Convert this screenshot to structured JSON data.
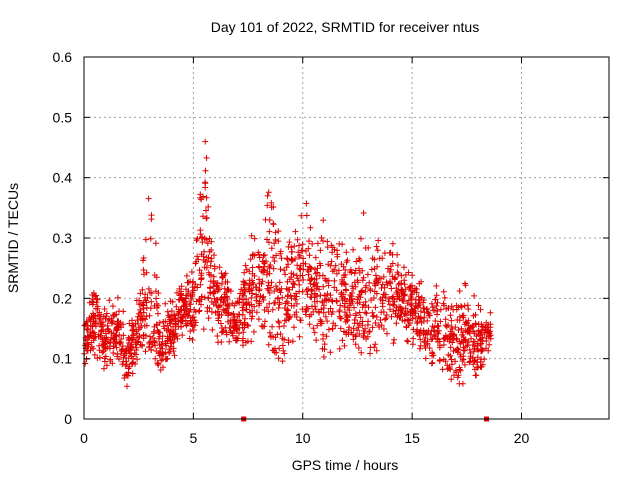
{
  "chart_data": {
    "type": "scatter",
    "title": "Day 101 of 2022, SRMTID for receiver ntus",
    "xlabel": "GPS time / hours",
    "ylabel": "SRMTID / TECUs",
    "xlim": [
      0,
      24
    ],
    "ylim": [
      0,
      0.6
    ],
    "xticks": [
      0,
      5,
      10,
      15,
      20
    ],
    "yticks": [
      0,
      0.1,
      0.2,
      0.3,
      0.4,
      0.5,
      0.6
    ],
    "xtick_labels": [
      "0",
      "5",
      "10",
      "15",
      "20"
    ],
    "ytick_labels": [
      "0",
      "0.1",
      "0.2",
      "0.3",
      "0.4",
      "0.5",
      "0.6"
    ],
    "grid": true,
    "marker": "+",
    "color": "#e00000",
    "data_span_hours": [
      0,
      18.6
    ],
    "value_range": [
      0.02,
      0.52
    ],
    "gap_markers_x": [
      7.3,
      18.4
    ],
    "envelope": [
      {
        "t": 0.0,
        "lo": 0.08,
        "mid": 0.13,
        "hi": 0.17
      },
      {
        "t": 0.5,
        "lo": 0.1,
        "mid": 0.16,
        "hi": 0.22
      },
      {
        "t": 1.0,
        "lo": 0.08,
        "mid": 0.13,
        "hi": 0.19
      },
      {
        "t": 1.5,
        "lo": 0.1,
        "mid": 0.15,
        "hi": 0.22
      },
      {
        "t": 2.0,
        "lo": 0.05,
        "mid": 0.1,
        "hi": 0.15
      },
      {
        "t": 2.5,
        "lo": 0.1,
        "mid": 0.16,
        "hi": 0.22
      },
      {
        "t": 3.0,
        "lo": 0.12,
        "mid": 0.2,
        "hi": 0.43
      },
      {
        "t": 3.5,
        "lo": 0.08,
        "mid": 0.12,
        "hi": 0.2
      },
      {
        "t": 4.0,
        "lo": 0.09,
        "mid": 0.14,
        "hi": 0.2
      },
      {
        "t": 4.5,
        "lo": 0.14,
        "mid": 0.18,
        "hi": 0.23
      },
      {
        "t": 5.0,
        "lo": 0.13,
        "mid": 0.19,
        "hi": 0.25
      },
      {
        "t": 5.5,
        "lo": 0.15,
        "mid": 0.28,
        "hi": 0.52
      },
      {
        "t": 6.0,
        "lo": 0.12,
        "mid": 0.2,
        "hi": 0.26
      },
      {
        "t": 6.5,
        "lo": 0.13,
        "mid": 0.19,
        "hi": 0.25
      },
      {
        "t": 7.0,
        "lo": 0.12,
        "mid": 0.16,
        "hi": 0.2
      },
      {
        "t": 7.5,
        "lo": 0.12,
        "mid": 0.2,
        "hi": 0.3
      },
      {
        "t": 8.0,
        "lo": 0.15,
        "mid": 0.24,
        "hi": 0.34
      },
      {
        "t": 8.5,
        "lo": 0.12,
        "mid": 0.22,
        "hi": 0.42
      },
      {
        "t": 9.0,
        "lo": 0.08,
        "mid": 0.17,
        "hi": 0.3
      },
      {
        "t": 9.5,
        "lo": 0.12,
        "mid": 0.21,
        "hi": 0.3
      },
      {
        "t": 10.0,
        "lo": 0.14,
        "mid": 0.25,
        "hi": 0.39
      },
      {
        "t": 10.5,
        "lo": 0.14,
        "mid": 0.21,
        "hi": 0.3
      },
      {
        "t": 11.0,
        "lo": 0.1,
        "mid": 0.2,
        "hi": 0.4
      },
      {
        "t": 11.5,
        "lo": 0.12,
        "mid": 0.2,
        "hi": 0.34
      },
      {
        "t": 12.0,
        "lo": 0.11,
        "mid": 0.2,
        "hi": 0.3
      },
      {
        "t": 12.5,
        "lo": 0.12,
        "mid": 0.2,
        "hi": 0.3
      },
      {
        "t": 13.0,
        "lo": 0.09,
        "mid": 0.18,
        "hi": 0.38
      },
      {
        "t": 13.5,
        "lo": 0.12,
        "mid": 0.2,
        "hi": 0.29
      },
      {
        "t": 14.0,
        "lo": 0.12,
        "mid": 0.21,
        "hi": 0.32
      },
      {
        "t": 14.5,
        "lo": 0.14,
        "mid": 0.2,
        "hi": 0.26
      },
      {
        "t": 15.0,
        "lo": 0.12,
        "mid": 0.18,
        "hi": 0.24
      },
      {
        "t": 15.5,
        "lo": 0.1,
        "mid": 0.16,
        "hi": 0.23
      },
      {
        "t": 16.0,
        "lo": 0.09,
        "mid": 0.15,
        "hi": 0.25
      },
      {
        "t": 16.5,
        "lo": 0.08,
        "mid": 0.14,
        "hi": 0.21
      },
      {
        "t": 17.0,
        "lo": 0.02,
        "mid": 0.12,
        "hi": 0.2
      },
      {
        "t": 17.5,
        "lo": 0.08,
        "mid": 0.14,
        "hi": 0.25
      },
      {
        "t": 18.0,
        "lo": 0.07,
        "mid": 0.12,
        "hi": 0.19
      },
      {
        "t": 18.6,
        "lo": 0.11,
        "mid": 0.15,
        "hi": 0.19
      }
    ]
  }
}
